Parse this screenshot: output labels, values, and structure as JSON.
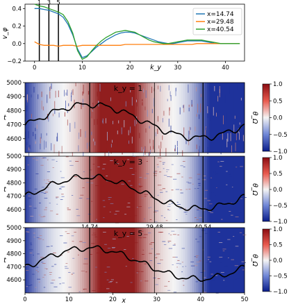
{
  "chart_data": [
    {
      "type": "line",
      "ylabel": "v_φ",
      "xlabel": "k_y",
      "xlim": [
        -2,
        44
      ],
      "ylim": [
        -0.2,
        0.45
      ],
      "yticks": [
        -0.2,
        0.0,
        0.2,
        0.4
      ],
      "yticklabels": [
        "−0.2",
        "0.0",
        "0.2",
        "0.4"
      ],
      "xticks": [
        0,
        10,
        20,
        30,
        40
      ],
      "xticklabels": [
        "0",
        "10",
        "20",
        "30",
        "40"
      ],
      "vlines": [
        1,
        3,
        5
      ],
      "vline_labels": [
        "1",
        "3",
        "5"
      ],
      "legend_position": "top-right",
      "series": [
        {
          "name": "x=14.74",
          "color": "#1f77b4",
          "x": [
            0,
            1,
            2,
            3,
            4,
            5,
            6,
            7,
            8,
            9,
            10,
            11,
            12,
            13,
            14,
            15,
            16,
            17,
            18,
            19,
            20,
            21,
            22,
            23,
            24,
            25,
            26,
            27,
            28,
            29,
            30,
            31,
            32,
            33,
            34,
            35,
            36,
            37,
            38,
            39,
            40,
            41,
            42,
            43
          ],
          "y": [
            0.4,
            0.4,
            0.39,
            0.38,
            0.36,
            0.34,
            0.3,
            0.22,
            0.1,
            -0.06,
            -0.16,
            -0.14,
            -0.09,
            -0.04,
            0.0,
            0.04,
            0.07,
            0.1,
            0.12,
            0.13,
            0.13,
            0.12,
            0.1,
            0.08,
            0.06,
            0.04,
            0.02,
            0.01,
            0.0,
            0.0,
            0.01,
            0.02,
            0.03,
            0.03,
            0.03,
            0.03,
            0.02,
            0.01,
            0.0,
            0.0,
            0.0,
            0.0,
            0.0,
            0.0
          ]
        },
        {
          "name": "x=29.48",
          "color": "#ff7f0e",
          "x": [
            0,
            1,
            2,
            3,
            4,
            5,
            6,
            7,
            8,
            9,
            10,
            11,
            12,
            13,
            14,
            15,
            16,
            17,
            18,
            19,
            20,
            21,
            22,
            23,
            24,
            25,
            26,
            27,
            28,
            29,
            30,
            31,
            32,
            33,
            34,
            35,
            36,
            37,
            38,
            39,
            40,
            41,
            42,
            43
          ],
          "y": [
            0.02,
            -0.01,
            -0.02,
            -0.02,
            -0.02,
            -0.03,
            -0.02,
            -0.02,
            -0.02,
            -0.03,
            -0.02,
            -0.02,
            -0.02,
            -0.02,
            -0.02,
            -0.02,
            -0.02,
            -0.02,
            -0.02,
            -0.01,
            -0.01,
            -0.01,
            -0.01,
            -0.01,
            -0.01,
            -0.01,
            -0.01,
            -0.01,
            -0.01,
            -0.01,
            -0.01,
            -0.01,
            -0.01,
            -0.01,
            0.0,
            0.0,
            0.0,
            0.0,
            0.0,
            0.0,
            0.0,
            0.0,
            0.0,
            0.0
          ]
        },
        {
          "name": "x=40.54",
          "color": "#2ca02c",
          "x": [
            0,
            1,
            2,
            3,
            4,
            5,
            6,
            7,
            8,
            9,
            10,
            11,
            12,
            13,
            14,
            15,
            16,
            17,
            18,
            19,
            20,
            21,
            22,
            23,
            24,
            25,
            26,
            27,
            28,
            29,
            30,
            31,
            32,
            33,
            34,
            35,
            36,
            37,
            38,
            39,
            40,
            41,
            42,
            43
          ],
          "y": [
            0.45,
            0.43,
            0.42,
            0.4,
            0.38,
            0.36,
            0.33,
            0.25,
            0.12,
            -0.08,
            -0.18,
            -0.15,
            -0.08,
            -0.02,
            0.03,
            0.07,
            0.1,
            0.13,
            0.14,
            0.15,
            0.14,
            0.13,
            0.1,
            0.07,
            0.04,
            0.02,
            0.01,
            0.0,
            0.0,
            0.01,
            0.02,
            0.03,
            0.04,
            0.04,
            0.04,
            0.04,
            0.03,
            0.02,
            0.01,
            0.0,
            0.0,
            0.0,
            0.0,
            0.0
          ]
        }
      ],
      "legend": [
        "x=14.74",
        "x=29.48",
        "x=40.54"
      ]
    },
    {
      "type": "heatmap",
      "panel_label": "k_y = 1",
      "ylabel": "t",
      "ylim": [
        4500,
        5000
      ],
      "yticks": [
        4600,
        4700,
        4800,
        4900,
        5000
      ],
      "yticklabels": [
        "4600",
        "4700",
        "4800",
        "4900",
        "5000"
      ],
      "xlim": [
        0,
        50
      ],
      "colorbar_label": "θ_Ω",
      "colorbar_ticks": [
        -1.0,
        -0.5,
        0.0,
        0.5,
        1.0
      ],
      "colorbar_ticklabels": [
        "−1.0",
        "−0.5",
        "0.0",
        "0.5",
        "1.0"
      ],
      "vlines": [
        14.74,
        29.48,
        40.54
      ]
    },
    {
      "type": "heatmap",
      "panel_label": "k_y = 3",
      "ylabel": "t",
      "ylim": [
        4500,
        5000
      ],
      "yticks": [
        4600,
        4700,
        4800,
        4900,
        5000
      ],
      "yticklabels": [
        "4600",
        "4700",
        "4800",
        "4900",
        "5000"
      ],
      "xlim": [
        0,
        50
      ],
      "colorbar_label": "θ_Ω",
      "colorbar_ticks": [
        -1.0,
        -0.5,
        0.0,
        0.5,
        1.0
      ],
      "colorbar_ticklabels": [
        "−1.0",
        "−0.5",
        "0.0",
        "0.5",
        "1.0"
      ],
      "vlines": [
        14.74,
        29.48,
        40.54
      ],
      "vline_labels": [
        "14.74",
        "29.48",
        "40.54"
      ]
    },
    {
      "type": "heatmap",
      "panel_label": "k_y = 5",
      "ylabel": "t",
      "xlabel": "x",
      "ylim": [
        4500,
        5000
      ],
      "yticks": [
        4600,
        4700,
        4800,
        4900,
        5000
      ],
      "yticklabels": [
        "4600",
        "4700",
        "4800",
        "4900",
        "5000"
      ],
      "xlim": [
        0,
        50
      ],
      "xticks": [
        0,
        10,
        20,
        30,
        40,
        50
      ],
      "xticklabels": [
        "0",
        "10",
        "20",
        "30",
        "40",
        "50"
      ],
      "colorbar_label": "θ_Ω",
      "colorbar_ticks": [
        -1.0,
        -0.5,
        0.0,
        0.5,
        1.0
      ],
      "colorbar_ticklabels": [
        "−1.0",
        "−0.5",
        "0.0",
        "0.5",
        "1.0"
      ],
      "vlines": [
        14.74,
        29.48,
        40.54
      ]
    }
  ]
}
